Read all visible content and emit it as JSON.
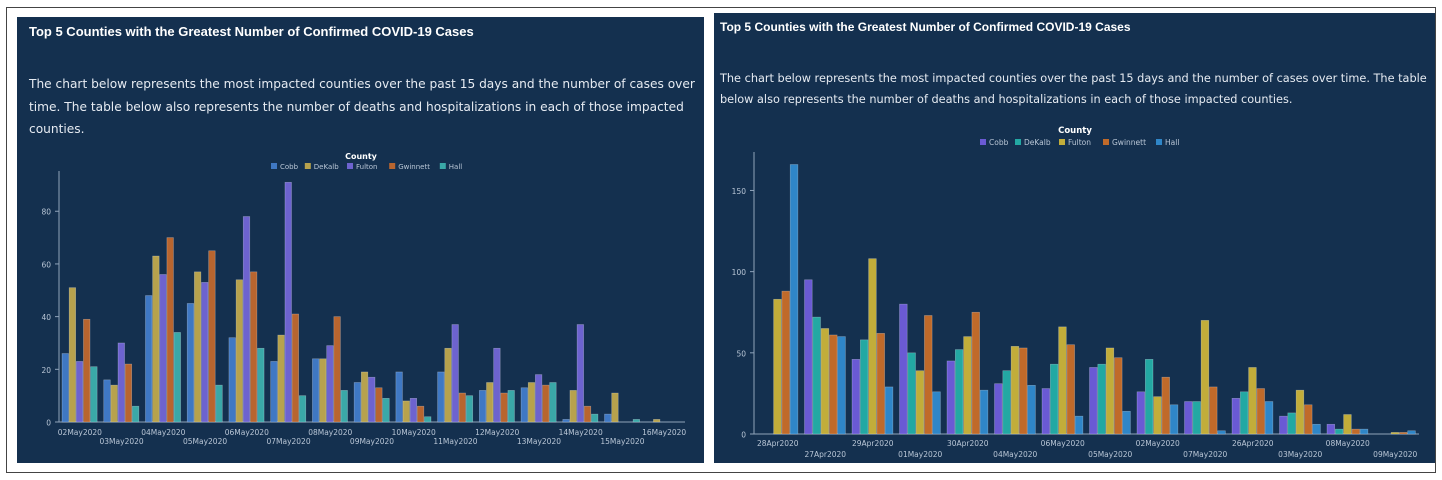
{
  "panels": [
    {
      "title": "Top 5 Counties with the Greatest Number of Confirmed COVID-19 Cases",
      "description": "The chart below represents the most impacted counties over the past 15 days and the number of cases over time. The table below also represents the number of deaths and hospitalizations in each of those impacted counties."
    },
    {
      "title": "Top 5 Counties with the Greatest Number of Confirmed COVID-19 Cases",
      "description": "The chart below represents the most impacted counties over the past 15 days and the number of cases over time. The table below also represents the number of deaths and hospitalizations in each of those impacted counties."
    }
  ],
  "chart_data": [
    {
      "type": "bar",
      "title": "",
      "legend_title": "County",
      "legend_position": "top-center",
      "xlabel": "",
      "ylabel": "",
      "ylim": [
        0,
        93
      ],
      "yticks": [
        0,
        20,
        40,
        60,
        80
      ],
      "grid": false,
      "categories": [
        "02May2020",
        "03May2020",
        "04May2020",
        "05May2020",
        "06May2020",
        "07May2020",
        "08May2020",
        "09May2020",
        "10May2020",
        "11May2020",
        "12May2020",
        "13May2020",
        "14May2020",
        "15May2020",
        "16May2020"
      ],
      "series": [
        {
          "name": "Cobb",
          "color": "#3f78c4",
          "values": [
            26,
            16,
            48,
            45,
            32,
            23,
            24,
            15,
            19,
            19,
            12,
            13,
            1,
            3,
            0
          ]
        },
        {
          "name": "DeKalb",
          "color": "#b7a24d",
          "values": [
            51,
            14,
            63,
            57,
            54,
            33,
            24,
            19,
            8,
            28,
            15,
            15,
            12,
            11,
            1
          ]
        },
        {
          "name": "Fulton",
          "color": "#6d63cf",
          "values": [
            23,
            30,
            56,
            53,
            78,
            91,
            29,
            17,
            9,
            37,
            28,
            18,
            37,
            0,
            0
          ]
        },
        {
          "name": "Gwinnett",
          "color": "#b8652f",
          "values": [
            39,
            22,
            70,
            65,
            57,
            41,
            40,
            13,
            6,
            11,
            11,
            14,
            6,
            0,
            0
          ]
        },
        {
          "name": "Hall",
          "color": "#3aa8a8",
          "values": [
            21,
            6,
            34,
            14,
            28,
            10,
            12,
            9,
            2,
            10,
            12,
            15,
            3,
            1,
            0
          ]
        }
      ]
    },
    {
      "type": "bar",
      "title": "",
      "legend_title": "County",
      "legend_position": "top-center",
      "xlabel": "",
      "ylabel": "",
      "ylim": [
        0,
        170
      ],
      "yticks": [
        0,
        50,
        100,
        150
      ],
      "grid": false,
      "categories": [
        "28Apr2020",
        "27Apr2020",
        "29Apr2020",
        "01May2020",
        "30Apr2020",
        "04May2020",
        "06May2020",
        "05May2020",
        "02May2020",
        "07May2020",
        "26Apr2020",
        "03May2020",
        "08May2020",
        "09May2020"
      ],
      "series": [
        {
          "name": "Cobb",
          "color": "#6a5ad4",
          "values": [
            null,
            95,
            46,
            80,
            45,
            31,
            28,
            41,
            26,
            20,
            22,
            11,
            6,
            null
          ]
        },
        {
          "name": "DeKalb",
          "color": "#23a8a3",
          "values": [
            null,
            72,
            58,
            50,
            52,
            39,
            43,
            43,
            46,
            20,
            26,
            13,
            3,
            null
          ]
        },
        {
          "name": "Fulton",
          "color": "#c2ad3a",
          "values": [
            83,
            65,
            108,
            39,
            60,
            54,
            66,
            53,
            23,
            70,
            41,
            27,
            12,
            1
          ]
        },
        {
          "name": "Gwinnett",
          "color": "#c06a2a",
          "values": [
            88,
            61,
            62,
            73,
            75,
            53,
            55,
            47,
            35,
            29,
            28,
            18,
            3,
            1
          ]
        },
        {
          "name": "Hall",
          "color": "#2f86c8",
          "values": [
            166,
            60,
            29,
            26,
            27,
            30,
            11,
            14,
            18,
            2,
            20,
            6,
            3,
            2
          ]
        }
      ]
    }
  ]
}
